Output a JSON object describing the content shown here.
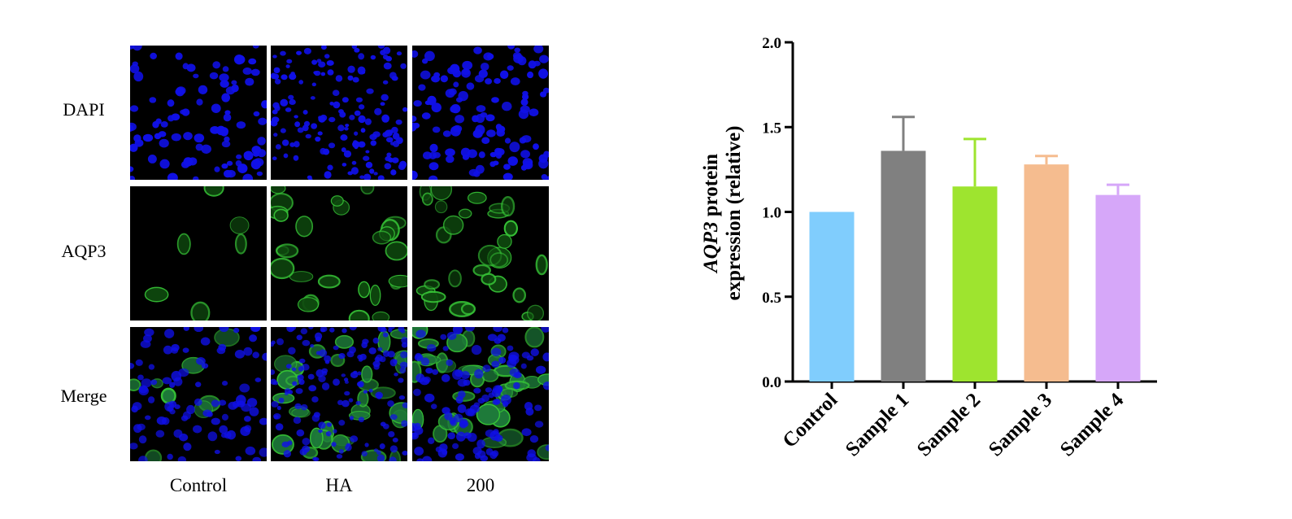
{
  "figure": {
    "rows": [
      "DAPI",
      "AQP3",
      "Merge"
    ],
    "columns": [
      "Control",
      "HA",
      "200"
    ],
    "colors": {
      "dapi": "#1010e8",
      "aqp3": "#36c236",
      "background": "#000000"
    }
  },
  "chart_data": {
    "type": "bar",
    "categories": [
      "Control",
      "Sample 1",
      "Sample 2",
      "Sample 3",
      "Sample 4"
    ],
    "values": [
      1.0,
      1.36,
      1.15,
      1.28,
      1.1
    ],
    "error_upper": [
      0,
      0.2,
      0.28,
      0.05,
      0.06
    ],
    "colors": [
      "#80cdfd",
      "#808080",
      "#9ee42f",
      "#f5bc8f",
      "#d6a7f9"
    ],
    "ylabel_italic": "AQP3",
    "ylabel_rest_line1": " protein",
    "ylabel_line2": "expression (relative)",
    "ylim": [
      0,
      2.0
    ],
    "yticks": [
      "0.0",
      "0.5",
      "1.0",
      "1.5",
      "2.0"
    ],
    "grid": false
  }
}
